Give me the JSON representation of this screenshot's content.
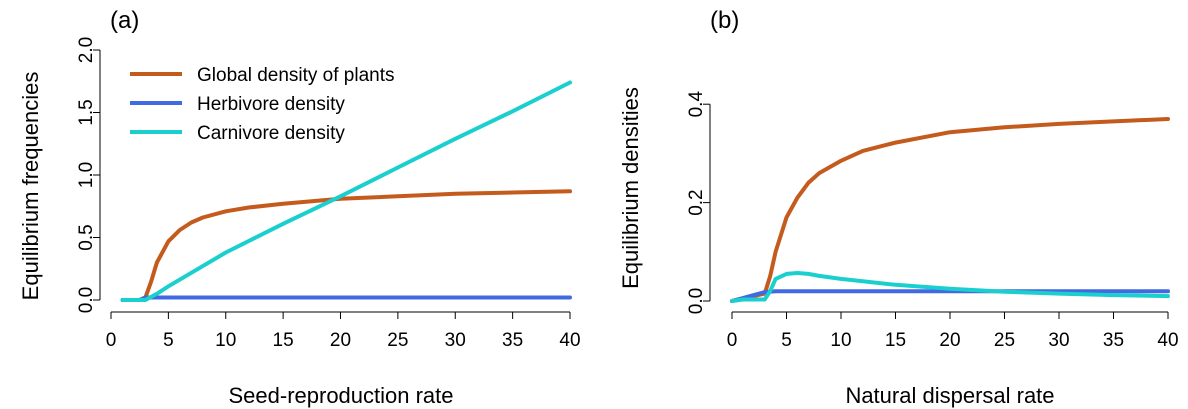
{
  "colors": {
    "plants": "#C55A1D",
    "herbivore": "#4169E1",
    "carnivore": "#1CCFCF"
  },
  "chart_data": [
    {
      "type": "line",
      "panel_label": "(a)",
      "xlabel": "Seed-reproduction rate",
      "ylabel": "Equilibrium frequencies",
      "xlim": [
        0,
        40
      ],
      "ylim": [
        0,
        2.0
      ],
      "xticks": [
        0,
        5,
        10,
        15,
        20,
        25,
        30,
        35,
        40
      ],
      "yticks": [
        0.0,
        0.5,
        1.0,
        1.5,
        2.0
      ],
      "xtick_labels": [
        "0",
        "5",
        "10",
        "15",
        "20",
        "25",
        "30",
        "35",
        "40"
      ],
      "ytick_labels": [
        "0.0",
        "0.5",
        "1.0",
        "1.5",
        "2.0"
      ],
      "legend_position": "top-left",
      "grid": false,
      "series": [
        {
          "name": "Global density of plants",
          "color_key": "plants",
          "x": [
            1,
            2,
            2.5,
            3,
            3.5,
            4,
            5,
            6,
            7,
            8,
            10,
            12,
            15,
            20,
            25,
            30,
            35,
            40
          ],
          "y": [
            0,
            0,
            0,
            0.02,
            0.15,
            0.3,
            0.47,
            0.56,
            0.62,
            0.66,
            0.71,
            0.74,
            0.77,
            0.81,
            0.83,
            0.85,
            0.86,
            0.87
          ]
        },
        {
          "name": "Herbivore density",
          "color_key": "herbivore",
          "x": [
            1,
            2,
            2.5,
            3,
            40
          ],
          "y": [
            0,
            0,
            0,
            0.02,
            0.02
          ]
        },
        {
          "name": "Carnivore density",
          "color_key": "carnivore",
          "x": [
            1,
            2,
            3,
            4,
            5,
            10,
            15,
            20,
            25,
            30,
            35,
            40
          ],
          "y": [
            0,
            0,
            0,
            0.05,
            0.11,
            0.38,
            0.61,
            0.83,
            1.06,
            1.29,
            1.51,
            1.74
          ]
        }
      ]
    },
    {
      "type": "line",
      "panel_label": "(b)",
      "xlabel": "Natural dispersal rate",
      "ylabel": "Equilibrium densities",
      "xlim": [
        0,
        40
      ],
      "ylim": [
        0,
        0.5
      ],
      "xticks": [
        0,
        5,
        10,
        15,
        20,
        25,
        30,
        35,
        40
      ],
      "yticks": [
        0.0,
        0.2,
        0.4
      ],
      "xtick_labels": [
        "0",
        "5",
        "10",
        "15",
        "20",
        "25",
        "30",
        "35",
        "40"
      ],
      "ytick_labels": [
        "0.0",
        "0.2",
        "0.4"
      ],
      "grid": false,
      "series": [
        {
          "color_key": "plants",
          "x": [
            0,
            1,
            2,
            3,
            3.5,
            4,
            5,
            6,
            7,
            8,
            10,
            12,
            15,
            20,
            25,
            30,
            35,
            40
          ],
          "y": [
            0,
            0.005,
            0.01,
            0.015,
            0.05,
            0.1,
            0.17,
            0.21,
            0.24,
            0.26,
            0.285,
            0.305,
            0.322,
            0.343,
            0.353,
            0.36,
            0.365,
            0.37
          ]
        },
        {
          "color_key": "herbivore",
          "x": [
            0,
            1,
            2,
            3,
            4,
            40
          ],
          "y": [
            0,
            0.006,
            0.012,
            0.018,
            0.02,
            0.02
          ]
        },
        {
          "color_key": "carnivore",
          "x": [
            0,
            1,
            2,
            3,
            3.5,
            4,
            5,
            6,
            7,
            8,
            10,
            12,
            15,
            20,
            25,
            30,
            35,
            40
          ],
          "y": [
            0,
            0.003,
            0.003,
            0.003,
            0.02,
            0.045,
            0.055,
            0.057,
            0.055,
            0.051,
            0.045,
            0.04,
            0.033,
            0.025,
            0.019,
            0.015,
            0.012,
            0.01
          ]
        }
      ]
    }
  ]
}
